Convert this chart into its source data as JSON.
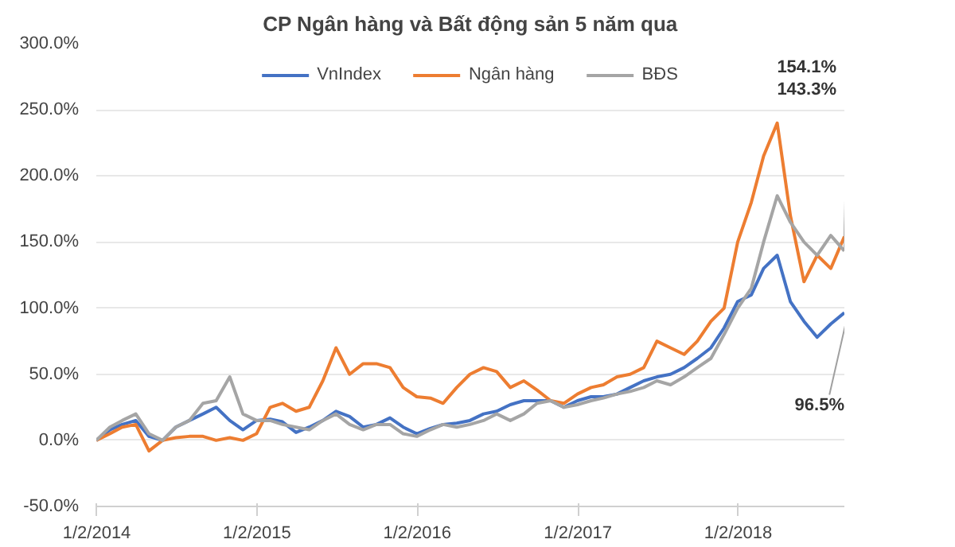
{
  "chart_data": {
    "type": "line",
    "title": "CP Ngân hàng và Bất động sản 5 năm qua",
    "x": [
      "2014-01",
      "2014-02",
      "2014-03",
      "2014-04",
      "2014-05",
      "2014-06",
      "2014-07",
      "2014-08",
      "2014-09",
      "2014-10",
      "2014-11",
      "2014-12",
      "2015-01",
      "2015-02",
      "2015-03",
      "2015-04",
      "2015-05",
      "2015-06",
      "2015-07",
      "2015-08",
      "2015-09",
      "2015-10",
      "2015-11",
      "2015-12",
      "2016-01",
      "2016-02",
      "2016-03",
      "2016-04",
      "2016-05",
      "2016-06",
      "2016-07",
      "2016-08",
      "2016-09",
      "2016-10",
      "2016-11",
      "2016-12",
      "2017-01",
      "2017-02",
      "2017-03",
      "2017-04",
      "2017-05",
      "2017-06",
      "2017-07",
      "2017-08",
      "2017-09",
      "2017-10",
      "2017-11",
      "2017-12",
      "2018-01",
      "2018-02",
      "2018-03",
      "2018-04",
      "2018-05",
      "2018-06",
      "2018-07",
      "2018-08",
      "2018-09"
    ],
    "series": [
      {
        "name": "VnIndex",
        "color": "#4472c4",
        "values": [
          0,
          8,
          12,
          15,
          3,
          0,
          10,
          15,
          20,
          25,
          15,
          8,
          15,
          16,
          14,
          6,
          10,
          15,
          22,
          18,
          10,
          12,
          17,
          10,
          5,
          9,
          12,
          13,
          15,
          20,
          22,
          27,
          30,
          30,
          30,
          25,
          30,
          33,
          33,
          35,
          40,
          45,
          48,
          50,
          55,
          62,
          70,
          85,
          105,
          110,
          130,
          140,
          105,
          90,
          78,
          88,
          96.5
        ]
      },
      {
        "name": "Ngân hàng",
        "color": "#ed7d31",
        "values": [
          0,
          5,
          10,
          12,
          -8,
          0,
          2,
          3,
          3,
          0,
          2,
          0,
          5,
          25,
          28,
          22,
          25,
          45,
          70,
          50,
          58,
          58,
          55,
          40,
          33,
          32,
          28,
          40,
          50,
          55,
          52,
          40,
          45,
          38,
          30,
          28,
          35,
          40,
          42,
          48,
          50,
          55,
          75,
          70,
          65,
          75,
          90,
          100,
          150,
          180,
          215,
          240,
          170,
          120,
          140,
          130,
          154.1
        ]
      },
      {
        "name": "BĐS",
        "color": "#a5a5a5",
        "values": [
          0,
          10,
          15,
          20,
          5,
          0,
          10,
          15,
          28,
          30,
          48,
          20,
          15,
          15,
          12,
          10,
          8,
          15,
          20,
          12,
          8,
          12,
          12,
          5,
          3,
          8,
          12,
          10,
          12,
          15,
          20,
          15,
          20,
          28,
          30,
          25,
          27,
          30,
          32,
          35,
          37,
          40,
          45,
          42,
          48,
          55,
          62,
          80,
          100,
          115,
          150,
          185,
          165,
          150,
          140,
          155,
          143.3
        ]
      }
    ],
    "xlim": [
      "2014-01",
      "2018-09"
    ],
    "xticks": [
      {
        "value": "2014-01-02",
        "label": "1/2/2014"
      },
      {
        "value": "2015-01-02",
        "label": "1/2/2015"
      },
      {
        "value": "2016-01-02",
        "label": "1/2/2016"
      },
      {
        "value": "2017-01-02",
        "label": "1/2/2017"
      },
      {
        "value": "2018-01-02",
        "label": "1/2/2018"
      }
    ],
    "ylim": [
      -50,
      300
    ],
    "yticks": [
      {
        "value": -50,
        "label": "-50.0%"
      },
      {
        "value": 0,
        "label": "0.0%"
      },
      {
        "value": 50,
        "label": "50.0%"
      },
      {
        "value": 100,
        "label": "100.0%"
      },
      {
        "value": 150,
        "label": "150.0%"
      },
      {
        "value": 200,
        "label": "200.0%"
      },
      {
        "value": 250,
        "label": "250.0%"
      },
      {
        "value": 300,
        "label": "300.0%"
      }
    ],
    "annotations": [
      {
        "text": "154.1%",
        "x": "2018-09",
        "y": 154.1
      },
      {
        "text": "143.3%",
        "x": "2018-09",
        "y": 143.3
      },
      {
        "text": "96.5%",
        "x": "2018-09",
        "y": 96.5
      }
    ],
    "grid": "y",
    "legend": "top",
    "line_style": "solid",
    "marker": "none"
  }
}
